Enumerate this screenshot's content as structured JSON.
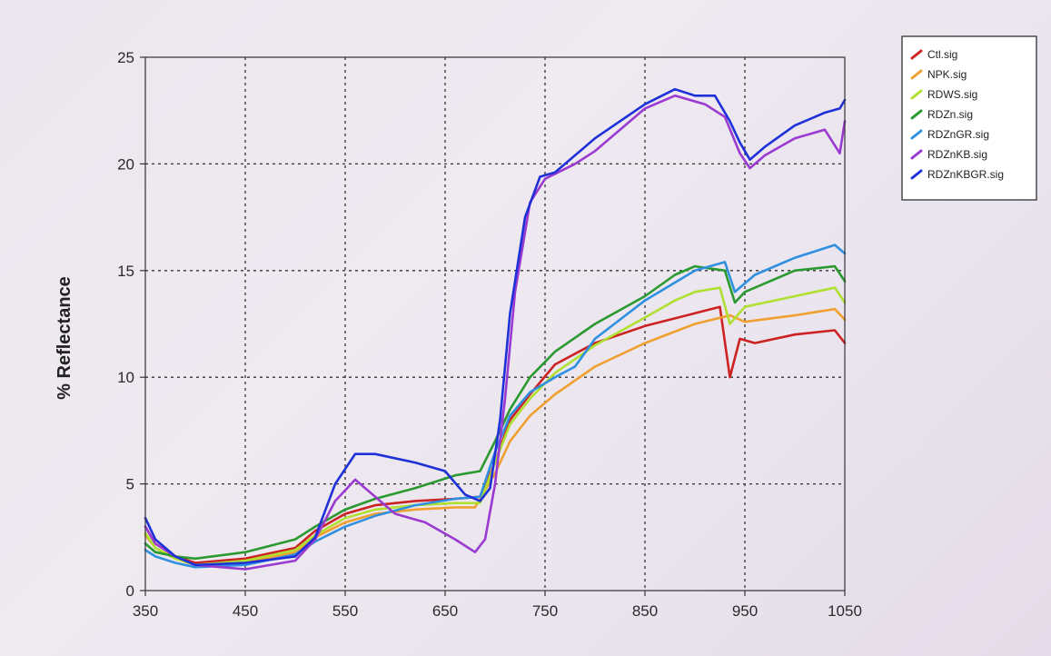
{
  "chart_data": {
    "type": "line",
    "title": "",
    "xlabel": "",
    "ylabel": "% Reflectance",
    "xlim": [
      350,
      1050
    ],
    "ylim": [
      0,
      25
    ],
    "x_ticks": [
      350,
      450,
      550,
      650,
      750,
      850,
      950,
      1050
    ],
    "y_ticks": [
      0,
      5,
      10,
      15,
      20,
      25
    ],
    "grid": "dashed",
    "legend_position": "top-right-outside",
    "series": [
      {
        "name": "Ctl.sig",
        "color": "#cc2222",
        "points": [
          [
            350,
            3.0
          ],
          [
            360,
            2.2
          ],
          [
            380,
            1.6
          ],
          [
            400,
            1.3
          ],
          [
            450,
            1.5
          ],
          [
            500,
            2.0
          ],
          [
            520,
            2.8
          ],
          [
            550,
            3.6
          ],
          [
            580,
            4.0
          ],
          [
            620,
            4.2
          ],
          [
            660,
            4.3
          ],
          [
            685,
            4.4
          ],
          [
            700,
            6.0
          ],
          [
            715,
            8.0
          ],
          [
            735,
            9.2
          ],
          [
            760,
            10.6
          ],
          [
            800,
            11.6
          ],
          [
            850,
            12.4
          ],
          [
            900,
            13.0
          ],
          [
            925,
            13.3
          ],
          [
            935,
            10.0
          ],
          [
            945,
            11.8
          ],
          [
            960,
            11.6
          ],
          [
            1000,
            12.0
          ],
          [
            1040,
            12.2
          ],
          [
            1050,
            11.6
          ]
        ]
      },
      {
        "name": "NPK.sig",
        "color": "#f0a030",
        "points": [
          [
            350,
            2.6
          ],
          [
            360,
            2.0
          ],
          [
            380,
            1.5
          ],
          [
            400,
            1.2
          ],
          [
            450,
            1.3
          ],
          [
            500,
            1.8
          ],
          [
            520,
            2.5
          ],
          [
            550,
            3.2
          ],
          [
            580,
            3.6
          ],
          [
            620,
            3.8
          ],
          [
            660,
            3.9
          ],
          [
            680,
            3.9
          ],
          [
            700,
            5.5
          ],
          [
            715,
            7.0
          ],
          [
            735,
            8.2
          ],
          [
            760,
            9.2
          ],
          [
            800,
            10.5
          ],
          [
            850,
            11.6
          ],
          [
            900,
            12.5
          ],
          [
            935,
            12.9
          ],
          [
            950,
            12.6
          ],
          [
            1000,
            12.9
          ],
          [
            1040,
            13.2
          ],
          [
            1050,
            12.7
          ]
        ]
      },
      {
        "name": "RDWS.sig",
        "color": "#b0e030",
        "points": [
          [
            350,
            2.7
          ],
          [
            360,
            2.0
          ],
          [
            380,
            1.5
          ],
          [
            400,
            1.2
          ],
          [
            450,
            1.4
          ],
          [
            500,
            1.9
          ],
          [
            520,
            2.6
          ],
          [
            550,
            3.4
          ],
          [
            580,
            3.8
          ],
          [
            620,
            4.0
          ],
          [
            660,
            4.1
          ],
          [
            685,
            4.1
          ],
          [
            700,
            6.0
          ],
          [
            715,
            7.8
          ],
          [
            735,
            9.0
          ],
          [
            760,
            10.2
          ],
          [
            800,
            11.5
          ],
          [
            850,
            12.8
          ],
          [
            880,
            13.6
          ],
          [
            900,
            14.0
          ],
          [
            925,
            14.2
          ],
          [
            935,
            12.5
          ],
          [
            950,
            13.3
          ],
          [
            1000,
            13.8
          ],
          [
            1040,
            14.2
          ],
          [
            1050,
            13.5
          ]
        ]
      },
      {
        "name": "RDZn.sig",
        "color": "#2a9a30",
        "points": [
          [
            350,
            2.2
          ],
          [
            360,
            1.8
          ],
          [
            380,
            1.6
          ],
          [
            400,
            1.5
          ],
          [
            450,
            1.8
          ],
          [
            500,
            2.4
          ],
          [
            520,
            3.0
          ],
          [
            550,
            3.8
          ],
          [
            580,
            4.3
          ],
          [
            620,
            4.8
          ],
          [
            660,
            5.4
          ],
          [
            685,
            5.6
          ],
          [
            700,
            7.0
          ],
          [
            715,
            8.5
          ],
          [
            735,
            10.0
          ],
          [
            760,
            11.2
          ],
          [
            800,
            12.5
          ],
          [
            850,
            13.8
          ],
          [
            880,
            14.8
          ],
          [
            900,
            15.2
          ],
          [
            930,
            15.0
          ],
          [
            940,
            13.5
          ],
          [
            950,
            14.0
          ],
          [
            1000,
            15.0
          ],
          [
            1040,
            15.2
          ],
          [
            1050,
            14.5
          ]
        ]
      },
      {
        "name": "RDZnGR.sig",
        "color": "#3090e0",
        "points": [
          [
            350,
            1.9
          ],
          [
            360,
            1.6
          ],
          [
            380,
            1.3
          ],
          [
            400,
            1.1
          ],
          [
            450,
            1.2
          ],
          [
            500,
            1.7
          ],
          [
            520,
            2.3
          ],
          [
            550,
            3.0
          ],
          [
            580,
            3.5
          ],
          [
            620,
            4.0
          ],
          [
            660,
            4.3
          ],
          [
            685,
            4.4
          ],
          [
            700,
            6.5
          ],
          [
            715,
            8.2
          ],
          [
            735,
            9.3
          ],
          [
            760,
            10.0
          ],
          [
            780,
            10.5
          ],
          [
            800,
            11.8
          ],
          [
            850,
            13.6
          ],
          [
            900,
            15.0
          ],
          [
            930,
            15.4
          ],
          [
            940,
            14.0
          ],
          [
            960,
            14.8
          ],
          [
            1000,
            15.6
          ],
          [
            1040,
            16.2
          ],
          [
            1050,
            15.8
          ]
        ]
      },
      {
        "name": "RDZnKB.sig",
        "color": "#9a3ad0",
        "points": [
          [
            350,
            3.0
          ],
          [
            360,
            2.2
          ],
          [
            380,
            1.6
          ],
          [
            400,
            1.2
          ],
          [
            450,
            1.0
          ],
          [
            500,
            1.4
          ],
          [
            520,
            2.4
          ],
          [
            540,
            4.2
          ],
          [
            560,
            5.2
          ],
          [
            575,
            4.6
          ],
          [
            600,
            3.6
          ],
          [
            630,
            3.2
          ],
          [
            660,
            2.4
          ],
          [
            680,
            1.8
          ],
          [
            690,
            2.4
          ],
          [
            700,
            5.0
          ],
          [
            710,
            9.0
          ],
          [
            720,
            14.0
          ],
          [
            735,
            18.2
          ],
          [
            750,
            19.3
          ],
          [
            780,
            20.0
          ],
          [
            800,
            20.6
          ],
          [
            850,
            22.6
          ],
          [
            880,
            23.2
          ],
          [
            910,
            22.8
          ],
          [
            930,
            22.2
          ],
          [
            945,
            20.5
          ],
          [
            955,
            19.8
          ],
          [
            970,
            20.4
          ],
          [
            1000,
            21.2
          ],
          [
            1030,
            21.6
          ],
          [
            1045,
            20.5
          ],
          [
            1050,
            22.0
          ]
        ]
      },
      {
        "name": "RDZnKBGR.sig",
        "color": "#1e30d8",
        "points": [
          [
            350,
            3.4
          ],
          [
            360,
            2.4
          ],
          [
            380,
            1.6
          ],
          [
            400,
            1.2
          ],
          [
            450,
            1.3
          ],
          [
            500,
            1.6
          ],
          [
            520,
            2.5
          ],
          [
            540,
            5.0
          ],
          [
            560,
            6.4
          ],
          [
            580,
            6.4
          ],
          [
            620,
            6.0
          ],
          [
            650,
            5.6
          ],
          [
            670,
            4.5
          ],
          [
            685,
            4.2
          ],
          [
            695,
            4.8
          ],
          [
            705,
            8.0
          ],
          [
            715,
            13.0
          ],
          [
            730,
            17.5
          ],
          [
            745,
            19.4
          ],
          [
            760,
            19.6
          ],
          [
            800,
            21.2
          ],
          [
            850,
            22.8
          ],
          [
            880,
            23.5
          ],
          [
            900,
            23.2
          ],
          [
            920,
            23.2
          ],
          [
            935,
            22.0
          ],
          [
            945,
            21.0
          ],
          [
            955,
            20.2
          ],
          [
            970,
            20.8
          ],
          [
            1000,
            21.8
          ],
          [
            1030,
            22.4
          ],
          [
            1045,
            22.6
          ],
          [
            1050,
            23.0
          ]
        ]
      }
    ]
  }
}
